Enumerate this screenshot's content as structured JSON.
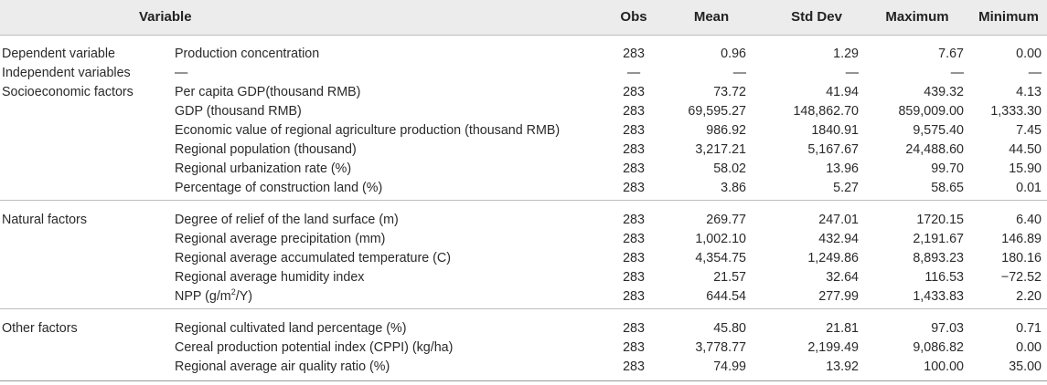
{
  "table": {
    "headers": {
      "variable": "Variable",
      "obs": "Obs",
      "mean": "Mean",
      "std": "Std Dev",
      "max": "Maximum",
      "min": "Minimum"
    },
    "groups": [
      {
        "rows": [
          {
            "category": "Dependent variable",
            "variable": "Production concentration",
            "obs": "283",
            "mean": "0.96",
            "std": "1.29",
            "max": "7.67",
            "min": "0.00"
          },
          {
            "category": "Independent variables",
            "variable": "—",
            "obs": "—",
            "mean": "—",
            "std": "—",
            "max": "—",
            "min": "—"
          },
          {
            "category": "Socioeconomic factors",
            "variable": "Per capita GDP(thousand RMB)",
            "obs": "283",
            "mean": "73.72",
            "std": "41.94",
            "max": "439.32",
            "min": "4.13"
          },
          {
            "category": "",
            "variable": "GDP (thousand RMB)",
            "obs": "283",
            "mean": "69,595.27",
            "std": "148,862.70",
            "max": "859,009.00",
            "min": "1,333.30"
          },
          {
            "category": "",
            "variable": "Economic value of regional agriculture production (thousand RMB)",
            "obs": "283",
            "mean": "986.92",
            "std": "1840.91",
            "max": "9,575.40",
            "min": "7.45"
          },
          {
            "category": "",
            "variable": "Regional population (thousand)",
            "obs": "283",
            "mean": "3,217.21",
            "std": "5,167.67",
            "max": "24,488.60",
            "min": "44.50"
          },
          {
            "category": "",
            "variable": "Regional urbanization rate (%)",
            "obs": "283",
            "mean": "58.02",
            "std": "13.96",
            "max": "99.70",
            "min": "15.90"
          },
          {
            "category": "",
            "variable": "Percentage of construction land (%)",
            "obs": "283",
            "mean": "3.86",
            "std": "5.27",
            "max": "58.65",
            "min": "0.01"
          }
        ]
      },
      {
        "rows": [
          {
            "category": "Natural factors",
            "variable": "Degree of relief of the land surface (m)",
            "obs": "283",
            "mean": "269.77",
            "std": "247.01",
            "max": "1720.15",
            "min": "6.40"
          },
          {
            "category": "",
            "variable": "Regional average precipitation (mm)",
            "obs": "283",
            "mean": "1,002.10",
            "std": "432.94",
            "max": "2,191.67",
            "min": "146.89"
          },
          {
            "category": "",
            "variable": "Regional average accumulated temperature (C)",
            "obs": "283",
            "mean": "4,354.75",
            "std": "1,249.86",
            "max": "8,893.23",
            "min": "180.16"
          },
          {
            "category": "",
            "variable": "Regional average humidity index",
            "obs": "283",
            "mean": "21.57",
            "std": "32.64",
            "max": "116.53",
            "min": "−72.52"
          },
          {
            "category": "",
            "variable": "NPP (g/m",
            "variable_sup": "2",
            "variable_tail": "/Y)",
            "obs": "283",
            "mean": "644.54",
            "std": "277.99",
            "max": "1,433.83",
            "min": "2.20"
          }
        ]
      },
      {
        "rows": [
          {
            "category": "Other factors",
            "variable": "Regional cultivated land percentage (%)",
            "obs": "283",
            "mean": "45.80",
            "std": "21.81",
            "max": "97.03",
            "min": "0.71"
          },
          {
            "category": "",
            "variable": "Cereal production potential index (CPPI) (kg/ha)",
            "obs": "283",
            "mean": "3,778.77",
            "std": "2,199.49",
            "max": "9,086.82",
            "min": "0.00"
          },
          {
            "category": "",
            "variable": "Regional average air quality ratio (%)",
            "obs": "283",
            "mean": "74.99",
            "std": "13.92",
            "max": "100.00",
            "min": "35.00"
          }
        ]
      }
    ]
  }
}
